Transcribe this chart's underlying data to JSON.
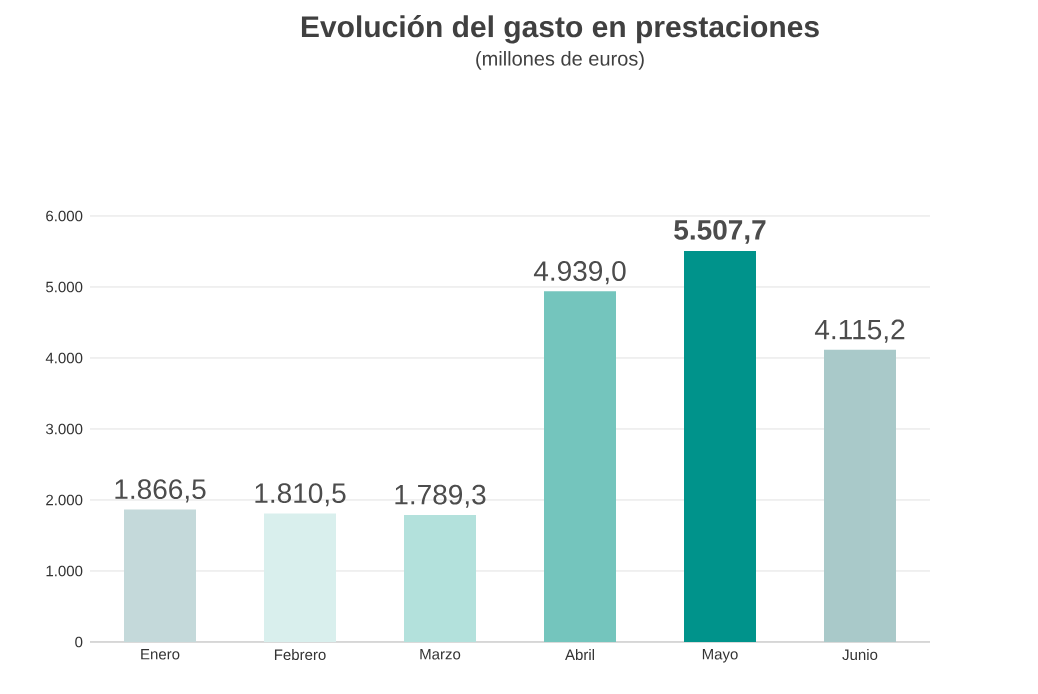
{
  "chart_data": {
    "type": "bar",
    "title": "Evolución del gasto en prestaciones",
    "subtitle": "(millones de euros)",
    "categories": [
      "Enero",
      "Febrero",
      "Marzo",
      "Abril",
      "Mayo",
      "Junio"
    ],
    "values": [
      1866.5,
      1810.5,
      1789.3,
      4939.0,
      5507.7,
      4115.2
    ],
    "colors": [
      "#c4d9da",
      "#d9efed",
      "#b3e1dc",
      "#74c5bd",
      "#00938b",
      "#a9c9c9"
    ],
    "value_labels": [
      "1.866,5",
      "1.810,5",
      "1.789,3",
      "4.939,0",
      "**5.507,7**",
      "4.115,2"
    ],
    "ylim": [
      0,
      6000
    ],
    "yticks": [
      {
        "value": 0,
        "label": "0"
      },
      {
        "value": 1000,
        "label": "1.000"
      },
      {
        "value": 2000,
        "label": "2.000"
      },
      {
        "value": 3000,
        "label": "3.000"
      },
      {
        "value": 4000,
        "label": "4.000"
      },
      {
        "value": 5000,
        "label": "5.000"
      },
      {
        "value": 6000,
        "label": "6.000"
      }
    ],
    "grid": "y"
  }
}
